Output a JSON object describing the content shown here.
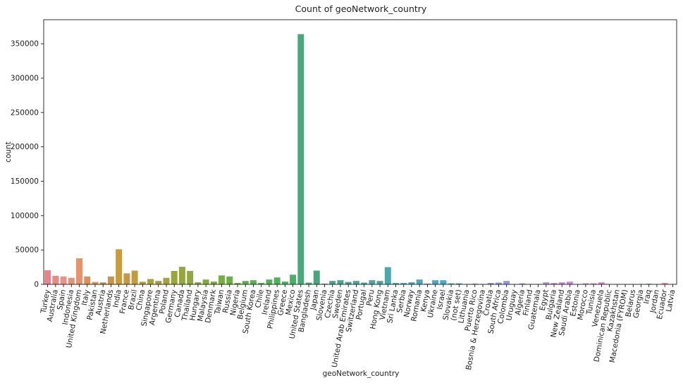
{
  "chart_data": {
    "type": "bar",
    "title": "Count of geoNetwork_country",
    "xlabel": "geoNetwork_country",
    "ylabel": "count",
    "ylim": [
      0,
      385000
    ],
    "yticks": [
      0,
      50000,
      100000,
      150000,
      200000,
      250000,
      300000,
      350000
    ],
    "ytick_labels": [
      "0",
      "50000",
      "100000",
      "150000",
      "200000",
      "250000",
      "300000",
      "350000"
    ],
    "grid": false,
    "legend": "none",
    "categories": [
      "Turkey",
      "Australia",
      "Spain",
      "Indonesia",
      "United Kingdom",
      "Italy",
      "Pakistan",
      "Austria",
      "Netherlands",
      "India",
      "France",
      "Brazil",
      "China",
      "Singapore",
      "Argentina",
      "Poland",
      "Germany",
      "Canada",
      "Thailand",
      "Hungary",
      "Malaysia",
      "Denmark",
      "Taiwan",
      "Russia",
      "Nigeria",
      "Belgium",
      "South Korea",
      "Chile",
      "Ireland",
      "Philippines",
      "Greece",
      "Mexico",
      "United States",
      "Bangladesh",
      "Japan",
      "Slovenia",
      "Czechia",
      "Sweden",
      "United Arab Emirates",
      "Switzerland",
      "Portugal",
      "Peru",
      "Hong Kong",
      "Vietnam",
      "Sri Lanka",
      "Serbia",
      "Norway",
      "Romania",
      "Kenya",
      "Ukraine",
      "Israel",
      "Slovakia",
      "(not set)",
      "Lithuania",
      "Puerto Rico",
      "Bosnia & Herzegovina",
      "Croatia",
      "South Africa",
      "Colombia",
      "Uruguay",
      "Algeria",
      "Finland",
      "Guatemala",
      "Egypt",
      "Bulgaria",
      "New Zealand",
      "Saudi Arabia",
      "Estonia",
      "Morocco",
      "Tunisia",
      "Venezuela",
      "Dominican Republic",
      "Kazakhstan",
      "Macedonia (FYROM)",
      "Belarus",
      "Georgia",
      "Iraq",
      "Jordan",
      "Ecuador",
      "Latvia"
    ],
    "values": [
      20500,
      12500,
      11500,
      9500,
      38000,
      11500,
      3500,
      2800,
      11500,
      51000,
      16000,
      20000,
      3800,
      7800,
      5000,
      9500,
      19500,
      25500,
      19500,
      3000,
      7000,
      4000,
      13000,
      11500,
      2000,
      5000,
      6000,
      2200,
      7000,
      10000,
      4000,
      14000,
      364000,
      2500,
      20000,
      1000,
      5000,
      6000,
      3500,
      5000,
      2500,
      6000,
      5000,
      25000,
      2000,
      2000,
      3000,
      7000,
      1000,
      6000,
      6000,
      1500,
      1500,
      500,
      1000,
      500,
      2000,
      2500,
      5000,
      500,
      1500,
      500,
      500,
      3000,
      2000,
      3000,
      4000,
      500,
      1500,
      1500,
      3000,
      500,
      500,
      500,
      500,
      500,
      1000,
      500,
      2000,
      500
    ],
    "colors": [
      "#e8828c",
      "#e68a84",
      "#e9928c",
      "#e09477",
      "#e59271",
      "#dc9058",
      "#d9945a",
      "#c88b45",
      "#cd9346",
      "#c99a3e",
      "#c79843",
      "#c29d3f",
      "#b49e3a",
      "#a9a23b",
      "#a7a23e",
      "#a3a340",
      "#9aa63c",
      "#94a73d",
      "#8ea73f",
      "#8aa843",
      "#81a93f",
      "#7aab41",
      "#75ae42",
      "#6dae46",
      "#66b048",
      "#62b14b",
      "#5cb24f",
      "#55b255",
      "#52b25a",
      "#4fb15e",
      "#4cb062",
      "#4ab065",
      "#49a97b",
      "#48a77c",
      "#48a580",
      "#48a589",
      "#49a58c",
      "#48a590",
      "#47a594",
      "#49a699",
      "#48a79c",
      "#49a6a2",
      "#48a7a5",
      "#49a8a9",
      "#4aa8ad",
      "#4ba8b1",
      "#4aa8b5",
      "#4aa8ba",
      "#4fa8be",
      "#4fa7c3",
      "#50a6c9",
      "#52a4cd",
      "#58a4d2",
      "#62a2d6",
      "#6aa1d9",
      "#739fdb",
      "#7e9dde",
      "#889be0",
      "#9498e3",
      "#9c96e5",
      "#a594e6",
      "#ad92e6",
      "#b390e5",
      "#bb8de4",
      "#c28ae2",
      "#c989df",
      "#d087dc",
      "#d485d9",
      "#d985d3",
      "#dc86cf",
      "#e085cb",
      "#e286c5",
      "#e388bf",
      "#e487b8",
      "#e587b2",
      "#e589ac",
      "#e68aa4",
      "#e78a9e",
      "#e78b98",
      "#e78b92"
    ]
  }
}
